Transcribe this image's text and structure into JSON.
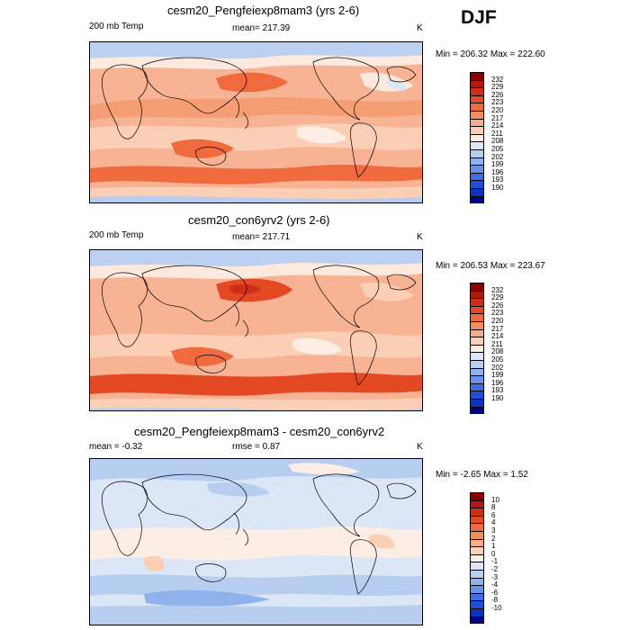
{
  "season": "DJF",
  "colors": {
    "temp_scale": [
      "#8b0000",
      "#b2180e",
      "#cf2e17",
      "#e34a24",
      "#ef6a3c",
      "#f48d5e",
      "#f7ad88",
      "#fbcfb5",
      "#fdeee5",
      "#dbe6f6",
      "#b8cef1",
      "#8fb1ec",
      "#6891e8",
      "#3f6ee6",
      "#1f4fd9",
      "#0a33bf",
      "#00008b"
    ],
    "diff_scale": [
      "#8b0000",
      "#b2180e",
      "#cf2e17",
      "#e34a24",
      "#ef6a3c",
      "#f48d5e",
      "#f7ad88",
      "#fbcfb5",
      "#fdeee5",
      "#dbe6f6",
      "#b8cef1",
      "#8fb1ec",
      "#6891e8",
      "#3f6ee6",
      "#1f4fd9",
      "#0a33bf",
      "#00008b"
    ]
  },
  "panels": [
    {
      "title": "cesm20_Pengfeiexp8mam3 (yrs 2-6)",
      "left_label": "200 mb Temp",
      "mean_label": "mean= 217.39",
      "units": "K",
      "min_max": "Min = 206.32 Max = 222.60",
      "colorbar_labels": [
        "232",
        "229",
        "226",
        "223",
        "220",
        "217",
        "214",
        "211",
        "208",
        "205",
        "202",
        "199",
        "196",
        "193",
        "190"
      ]
    },
    {
      "title": "cesm20_con6yrv2 (yrs 2-6)",
      "left_label": "200 mb Temp",
      "mean_label": "mean= 217.71",
      "units": "K",
      "min_max": "Min = 206.53 Max = 223.67",
      "colorbar_labels": [
        "232",
        "229",
        "226",
        "223",
        "220",
        "217",
        "214",
        "211",
        "208",
        "205",
        "202",
        "199",
        "196",
        "193",
        "190"
      ]
    },
    {
      "title": "cesm20_Pengfeiexp8mam3 - cesm20_con6yrv2",
      "left_label": "mean =  -0.32",
      "mean_label": "rmse =   0.87",
      "units": "K",
      "min_max": "Min =  -2.65 Max =   1.52",
      "colorbar_labels": [
        "10",
        "8",
        "6",
        "4",
        "3",
        "2",
        "1",
        "0",
        "-1",
        "-2",
        "-3",
        "-4",
        "-6",
        "-8",
        "-10"
      ]
    }
  ]
}
